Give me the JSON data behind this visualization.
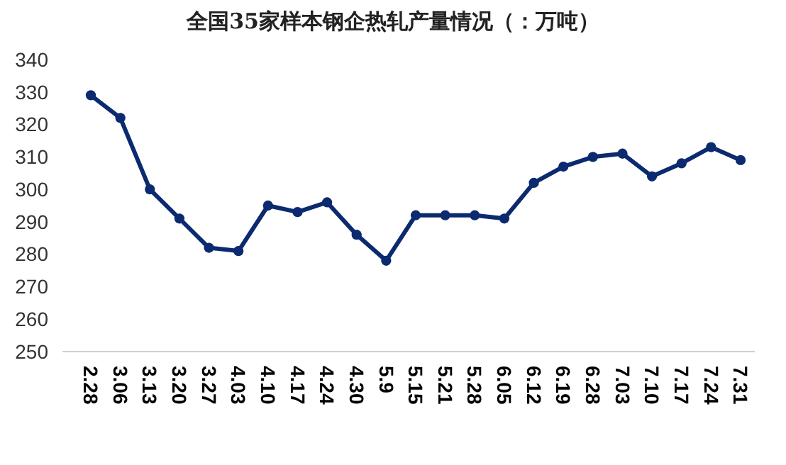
{
  "chart_data": {
    "type": "line",
    "title": "全国35家样本钢企热轧产量情况（：万吨）",
    "categories": [
      "2.28",
      "3.06",
      "3.13",
      "3.20",
      "3.27",
      "4.03",
      "4.10",
      "4.17",
      "4.24",
      "4.30",
      "5.9",
      "5.15",
      "5.21",
      "5.28",
      "6.05",
      "6.12",
      "6.19",
      "6.28",
      "7.03",
      "7.10",
      "7.17",
      "7.24",
      "7.31"
    ],
    "series": [
      {
        "color": "#0b2a6f",
        "values": [
          329,
          322,
          300,
          291,
          282,
          281,
          295,
          293,
          296,
          286,
          278,
          292,
          292,
          292,
          291,
          302,
          307,
          310,
          311,
          304,
          308,
          313,
          309
        ]
      }
    ],
    "ylim": [
      250,
      340
    ],
    "yticks": [
      250,
      260,
      270,
      280,
      290,
      300,
      310,
      320,
      330,
      340
    ],
    "marker": "circle",
    "line_style": "solid"
  }
}
